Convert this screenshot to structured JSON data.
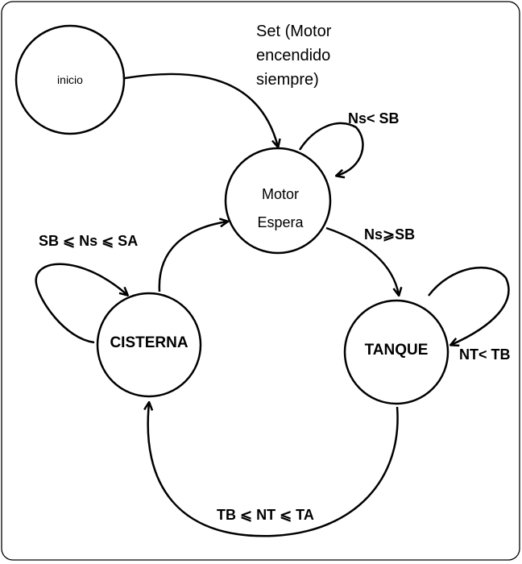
{
  "diagram": {
    "states": {
      "inicio": "inicio",
      "motor_line1": "Motor",
      "motor_line2": "Espera",
      "cisterna": "CISTERNA",
      "tanque": "TANQUE"
    },
    "transitions": {
      "set_line1": "Set (Motor",
      "set_line2": "encendido",
      "set_line3": "siempre)",
      "motor_self": "Ns< SB",
      "motor_to_tanque": "Ns⩾SB",
      "cisterna_self": "SB ⩽ Ns ⩽ SA",
      "tanque_self": "NT< TB",
      "tanque_to_cisterna": "TB ⩽ NT ⩽ TA"
    }
  }
}
